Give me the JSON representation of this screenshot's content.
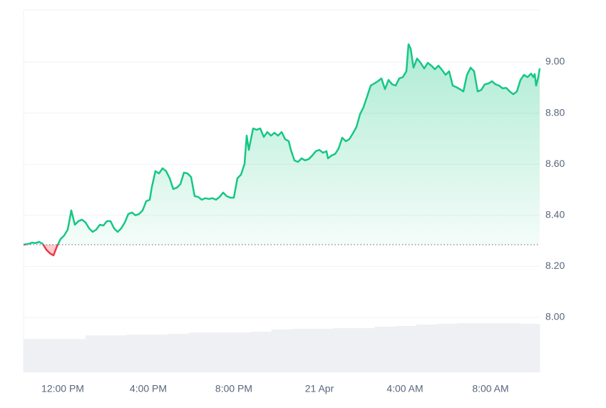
{
  "chart_data": {
    "type": "line",
    "xlim": [
      -110,
      1338
    ],
    "xticks": [
      {
        "value": 0,
        "label": "12:00 PM"
      },
      {
        "value": 240,
        "label": "4:00 PM"
      },
      {
        "value": 480,
        "label": "8:00 PM"
      },
      {
        "value": 720,
        "label": "21 Apr"
      },
      {
        "value": 960,
        "label": "4:00 AM"
      },
      {
        "value": 1200,
        "label": "8:00 AM"
      }
    ],
    "ylim": [
      7.785,
      9.204
    ],
    "yticks": [
      {
        "value": 8.0,
        "label": "8.00"
      },
      {
        "value": 8.2,
        "label": "8.20"
      },
      {
        "value": 8.4,
        "label": "8.40"
      },
      {
        "value": 8.6,
        "label": "8.60"
      },
      {
        "value": 8.8,
        "label": "8.80"
      },
      {
        "value": 9.0,
        "label": "9.00"
      }
    ],
    "grid": true,
    "baseline": 8.285,
    "up_color": "#16c784",
    "down_color": "#ea3943",
    "x": [
      -110,
      -96,
      -86,
      -76,
      -66,
      -56,
      -46,
      -36,
      -26,
      -16,
      -6,
      4,
      14,
      24,
      34,
      44,
      54,
      64,
      74,
      84,
      94,
      104,
      114,
      124,
      134,
      144,
      154,
      164,
      174,
      184,
      194,
      204,
      214,
      224,
      234,
      244,
      250,
      260,
      270,
      280,
      290,
      300,
      310,
      320,
      330,
      340,
      350,
      360,
      370,
      380,
      390,
      400,
      410,
      420,
      430,
      440,
      450,
      460,
      470,
      480,
      490,
      500,
      510,
      516,
      522,
      528,
      534,
      544,
      554,
      564,
      574,
      584,
      594,
      604,
      614,
      624,
      634,
      640,
      650,
      660,
      670,
      680,
      690,
      700,
      710,
      720,
      730,
      740,
      744,
      754,
      764,
      774,
      784,
      794,
      804,
      814,
      824,
      834,
      844,
      854,
      864,
      874,
      884,
      894,
      904,
      914,
      924,
      934,
      944,
      954,
      964,
      970,
      976,
      984,
      994,
      1004,
      1014,
      1024,
      1034,
      1044,
      1054,
      1064,
      1074,
      1084,
      1094,
      1104,
      1114,
      1124,
      1134,
      1144,
      1154,
      1164,
      1174,
      1184,
      1194,
      1204,
      1214,
      1224,
      1234,
      1244,
      1254,
      1264,
      1274,
      1284,
      1294,
      1304,
      1314,
      1320,
      1324,
      1328,
      1334,
      1338
    ],
    "values": [
      8.285,
      8.288,
      8.293,
      8.291,
      8.296,
      8.288,
      8.265,
      8.251,
      8.243,
      8.279,
      8.307,
      8.321,
      8.344,
      8.419,
      8.363,
      8.377,
      8.383,
      8.372,
      8.349,
      8.335,
      8.344,
      8.363,
      8.36,
      8.377,
      8.377,
      8.349,
      8.335,
      8.349,
      8.372,
      8.405,
      8.411,
      8.4,
      8.405,
      8.419,
      8.455,
      8.461,
      8.511,
      8.573,
      8.564,
      8.584,
      8.573,
      8.545,
      8.503,
      8.508,
      8.522,
      8.567,
      8.564,
      8.55,
      8.475,
      8.472,
      8.461,
      8.467,
      8.464,
      8.467,
      8.461,
      8.472,
      8.489,
      8.475,
      8.469,
      8.469,
      8.545,
      8.559,
      8.601,
      8.712,
      8.656,
      8.698,
      8.74,
      8.735,
      8.74,
      8.707,
      8.726,
      8.712,
      8.723,
      8.712,
      8.726,
      8.698,
      8.69,
      8.656,
      8.615,
      8.609,
      8.623,
      8.615,
      8.62,
      8.634,
      8.651,
      8.656,
      8.645,
      8.651,
      8.623,
      8.634,
      8.64,
      8.662,
      8.704,
      8.69,
      8.698,
      8.721,
      8.746,
      8.796,
      8.824,
      8.866,
      8.908,
      8.916,
      8.925,
      8.936,
      8.894,
      8.93,
      8.913,
      8.908,
      8.936,
      8.941,
      8.964,
      9.07,
      9.053,
      8.978,
      9.014,
      8.997,
      8.975,
      8.997,
      8.986,
      8.972,
      8.986,
      8.969,
      8.95,
      8.964,
      8.908,
      8.902,
      8.894,
      8.885,
      8.95,
      8.978,
      8.964,
      8.885,
      8.891,
      8.913,
      8.916,
      8.925,
      8.913,
      8.908,
      8.897,
      8.899,
      8.885,
      8.874,
      8.885,
      8.93,
      8.95,
      8.941,
      8.955,
      8.941,
      8.953,
      8.908,
      8.941,
      8.975
    ],
    "volume": {
      "color": "#eef0f3",
      "y2lim": [
        0,
        100
      ],
      "values": [
        9.2,
        9.2,
        9.2,
        10.2,
        10.2,
        10.4,
        10.4,
        10.6,
        11,
        11,
        11,
        11.2,
        11.8,
        12,
        12,
        12.2,
        12.2,
        12.6,
        12.8,
        13.2,
        13.4,
        13.6,
        13.6,
        13.6,
        13.4
      ]
    }
  }
}
